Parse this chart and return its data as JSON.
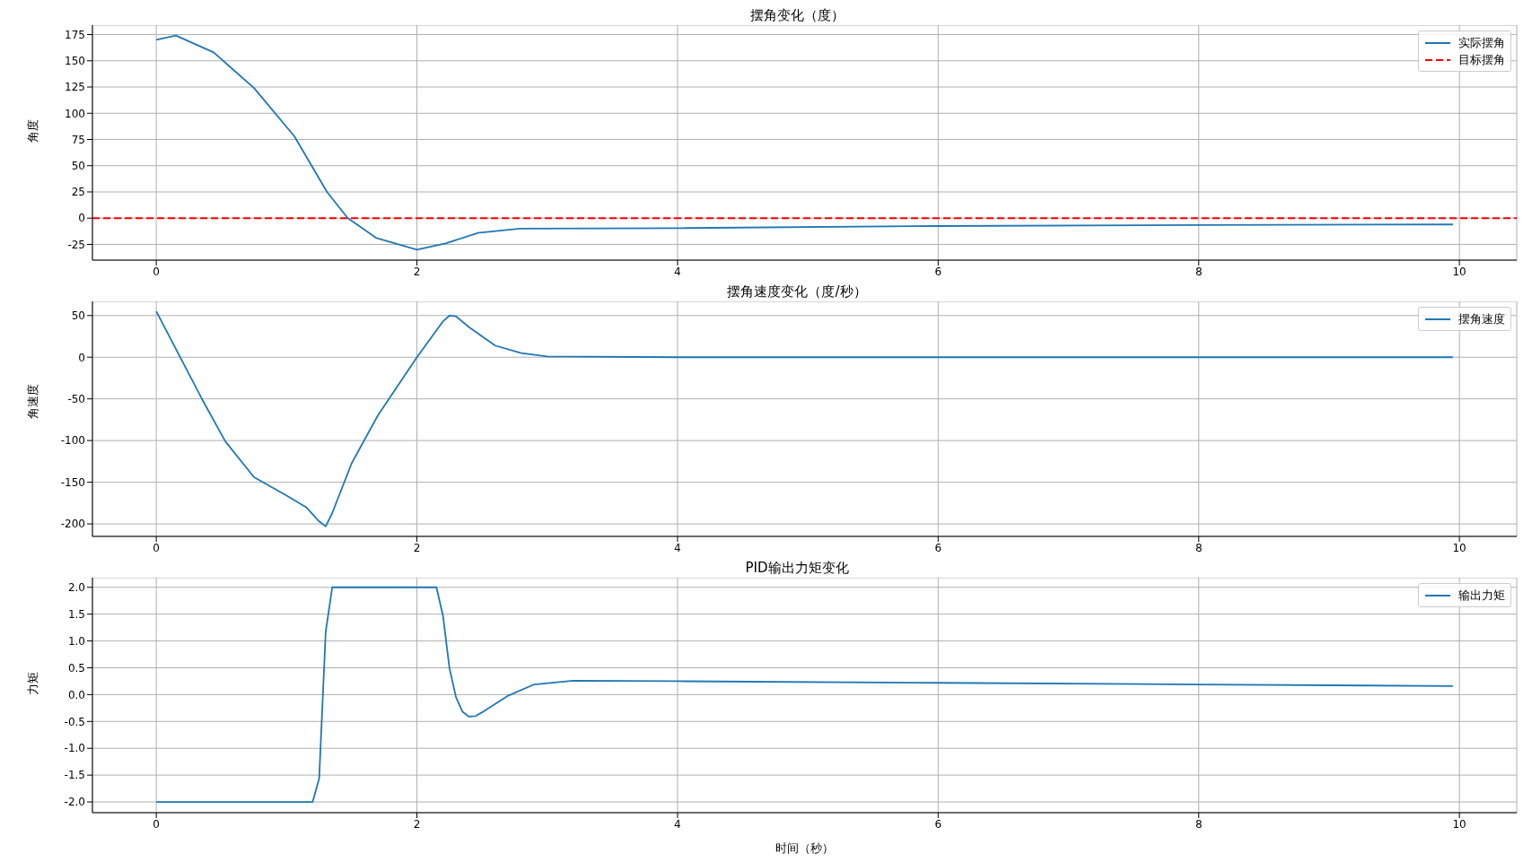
{
  "chart_data": [
    {
      "type": "line",
      "title": "摆角变化（度）",
      "ylabel": "角度",
      "xlim": [
        -0.49,
        10.44
      ],
      "xticks": [
        0,
        2,
        4,
        6,
        8,
        10
      ],
      "ylim": [
        -40,
        184
      ],
      "yticks": [
        -25,
        0,
        25,
        50,
        75,
        100,
        125,
        150,
        175
      ],
      "grid": true,
      "legend": "top right",
      "line_style": "solid",
      "marker": "none",
      "x": [
        0,
        0.15,
        0.44,
        0.75,
        1.06,
        1.31,
        1.47,
        1.69,
        2.0,
        2.22,
        2.47,
        2.79,
        4,
        6,
        8,
        9.95
      ],
      "series": [
        {
          "name": "实际摆角",
          "color": "#1f77b4",
          "values": [
            170,
            174,
            158,
            124,
            78,
            25,
            0,
            -19,
            -30,
            -24,
            -14,
            -10,
            -9.5,
            -7.5,
            -6.5,
            -6
          ]
        }
      ],
      "ref_lines": [
        {
          "axis": "y",
          "value": 0,
          "label": "目标摆角",
          "color": "#ff0000",
          "line_style": "dashed"
        }
      ]
    },
    {
      "type": "line",
      "title": "摆角速度变化（度/秒）",
      "ylabel": "角速度",
      "xlim": [
        -0.49,
        10.44
      ],
      "xticks": [
        0,
        2,
        4,
        6,
        8,
        10
      ],
      "ylim": [
        -215,
        67
      ],
      "yticks": [
        -200,
        -150,
        -100,
        -50,
        0,
        50
      ],
      "grid": true,
      "legend": "top right",
      "line_style": "solid",
      "marker": "none",
      "x": [
        0,
        0.35,
        0.53,
        0.75,
        1.0,
        1.15,
        1.25,
        1.3,
        1.35,
        1.5,
        1.7,
        2.0,
        2.2,
        2.25,
        2.3,
        2.4,
        2.6,
        2.8,
        3.0,
        4,
        6,
        8,
        9.95
      ],
      "series": [
        {
          "name": "摆角速度",
          "color": "#1f77b4",
          "values": [
            55,
            -50,
            -101,
            -144,
            -166,
            -180,
            -197,
            -203,
            -187,
            -127,
            -70,
            0,
            43,
            50,
            49,
            36,
            14,
            5,
            1,
            0,
            0,
            0,
            0
          ]
        }
      ]
    },
    {
      "type": "line",
      "title": "PID输出力矩变化",
      "xlabel": "时间（秒）",
      "ylabel": "力矩",
      "xlim": [
        -0.49,
        10.44
      ],
      "xticks": [
        0,
        2,
        4,
        6,
        8,
        10
      ],
      "ylim": [
        -2.2,
        2.18
      ],
      "yticks": [
        {
          "value": -2,
          "label": "-2.0"
        },
        {
          "value": -1.5,
          "label": "-1.5"
        },
        {
          "value": -1,
          "label": "-1.0"
        },
        {
          "value": -0.5,
          "label": "-0.5"
        },
        {
          "value": 0,
          "label": "0.0"
        },
        {
          "value": 0.5,
          "label": "0.5"
        },
        {
          "value": 1,
          "label": "1.0"
        },
        {
          "value": 1.5,
          "label": "1.5"
        },
        {
          "value": 2,
          "label": "2.0"
        }
      ],
      "grid": true,
      "legend": "top right",
      "line_style": "solid",
      "marker": "none",
      "x": [
        0,
        1.2,
        1.25,
        1.3,
        1.35,
        2.15,
        2.2,
        2.25,
        2.3,
        2.35,
        2.4,
        2.45,
        2.5,
        2.7,
        2.9,
        3.2,
        4,
        6,
        8,
        9.95
      ],
      "series": [
        {
          "name": "输出力矩",
          "color": "#1f77b4",
          "values": [
            -2,
            -2,
            -1.56,
            1.17,
            2,
            2,
            1.47,
            0.49,
            -0.05,
            -0.32,
            -0.41,
            -0.4,
            -0.33,
            -0.02,
            0.19,
            0.26,
            0.25,
            0.22,
            0.19,
            0.16
          ]
        }
      ]
    }
  ]
}
